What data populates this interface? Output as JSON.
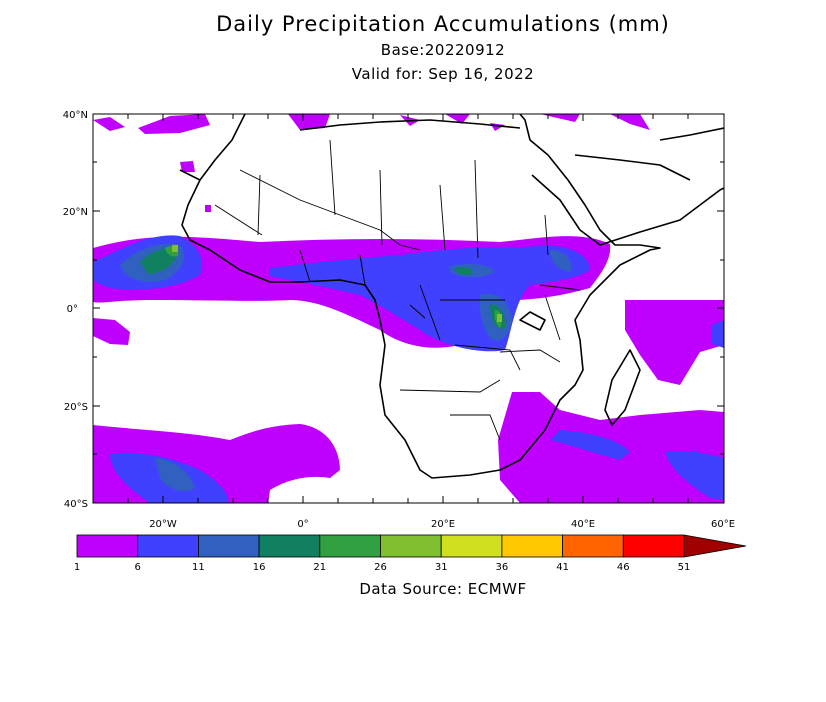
{
  "title": "Daily Precipitation Accumulations (mm)",
  "base": "Base:20220912",
  "valid": "Valid for: Sep 16, 2022",
  "source": "Data Source: ECMWF",
  "lat_labels": [
    "40°N",
    "20°N",
    "0°",
    "20°S",
    "40°S"
  ],
  "lon_labels": [
    "20°W",
    "0°",
    "20°E",
    "40°E",
    "60°E"
  ],
  "legend": {
    "labels": [
      "1",
      "6",
      "11",
      "16",
      "21",
      "26",
      "31",
      "36",
      "41",
      "46",
      "51"
    ],
    "colors": [
      "#c000ff",
      "#4040ff",
      "#3060c0",
      "#108060",
      "#30a040",
      "#80c030",
      "#d0e020",
      "#ffc800",
      "#ff6400",
      "#ff0000",
      "#a00000"
    ]
  },
  "palette": {
    "p1": "#c000ff",
    "p6": "#4040ff",
    "p11": "#3060c0",
    "p16": "#108060",
    "p21": "#30a040",
    "p26": "#80c030"
  }
}
